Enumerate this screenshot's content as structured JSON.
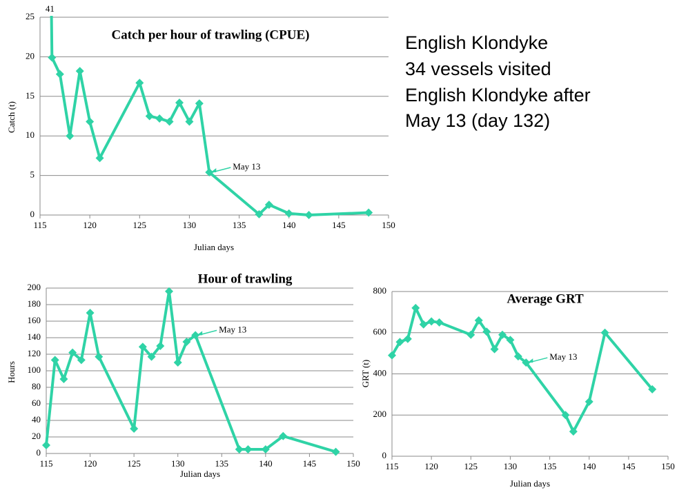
{
  "note": [
    "English Klondyke",
    "34 vessels visited",
    "English Klondyke after",
    "May 13 (day 132)"
  ],
  "chart_data": [
    {
      "type": "line",
      "title": "Catch per hour of trawling (CPUE)",
      "x_label": "Julian days",
      "y_label": "Catch (t)",
      "x": [
        116,
        116.2,
        117,
        118,
        119,
        120,
        121,
        125,
        126,
        127,
        128,
        129,
        130,
        131,
        132,
        137,
        138,
        140,
        142,
        148
      ],
      "series": [
        {
          "color": "#2fd3a6",
          "values": [
            41,
            19.9,
            17.8,
            10,
            18.2,
            11.8,
            7.2,
            16.7,
            12.5,
            12.2,
            11.8,
            14.2,
            11.8,
            14.1,
            5.4,
            0.1,
            1.3,
            0.2,
            0.0,
            0.3
          ]
        }
      ],
      "xlim": [
        115,
        150
      ],
      "xticks": [
        115,
        120,
        125,
        130,
        135,
        140,
        145,
        150
      ],
      "ylim": [
        0,
        25
      ],
      "yticks": [
        0,
        5,
        10,
        15,
        20,
        25
      ],
      "grid": true,
      "annotations": [
        {
          "text": "41",
          "x": 116,
          "y": 41
        },
        {
          "text": "May 13",
          "x": 132,
          "y": 5.4
        }
      ]
    },
    {
      "type": "line",
      "title": "Hour of trawling",
      "x_label": "Julian days",
      "y_label": "Hours",
      "x": [
        115,
        116,
        117,
        118,
        119,
        120,
        121,
        125,
        126,
        127,
        128,
        129,
        130,
        131,
        132,
        137,
        138,
        140,
        142,
        148
      ],
      "series": [
        {
          "color": "#2fd3a6",
          "values": [
            10,
            113,
            90,
            122,
            113,
            170,
            117,
            30,
            129,
            117,
            130,
            196,
            110,
            135,
            143,
            5,
            5,
            5,
            21,
            2
          ]
        }
      ],
      "xlim": [
        115,
        150
      ],
      "xticks": [
        115,
        120,
        125,
        130,
        135,
        140,
        145,
        150
      ],
      "ylim": [
        0,
        200
      ],
      "yticks": [
        0,
        20,
        40,
        60,
        80,
        100,
        120,
        140,
        160,
        180,
        200
      ],
      "grid": true,
      "annotations": [
        {
          "text": "May 13",
          "x": 132,
          "y": 143
        }
      ]
    },
    {
      "type": "line",
      "title": "Average GRT",
      "x_label": "Julian days",
      "y_label": "GRT (t)",
      "x": [
        115,
        116,
        117,
        118,
        119,
        120,
        121,
        125,
        126,
        127,
        128,
        129,
        130,
        131,
        132,
        137,
        138,
        140,
        142,
        148
      ],
      "series": [
        {
          "color": "#2fd3a6",
          "values": [
            490,
            555,
            570,
            720,
            640,
            655,
            650,
            590,
            660,
            605,
            520,
            590,
            565,
            485,
            455,
            200,
            120,
            265,
            600,
            325
          ]
        }
      ],
      "xlim": [
        115,
        150
      ],
      "xticks": [
        115,
        120,
        125,
        130,
        135,
        140,
        145,
        150
      ],
      "ylim": [
        0,
        800
      ],
      "yticks": [
        0,
        200,
        400,
        600,
        800
      ],
      "grid": true,
      "annotations": [
        {
          "text": "May 13",
          "x": 132,
          "y": 455
        }
      ]
    }
  ]
}
